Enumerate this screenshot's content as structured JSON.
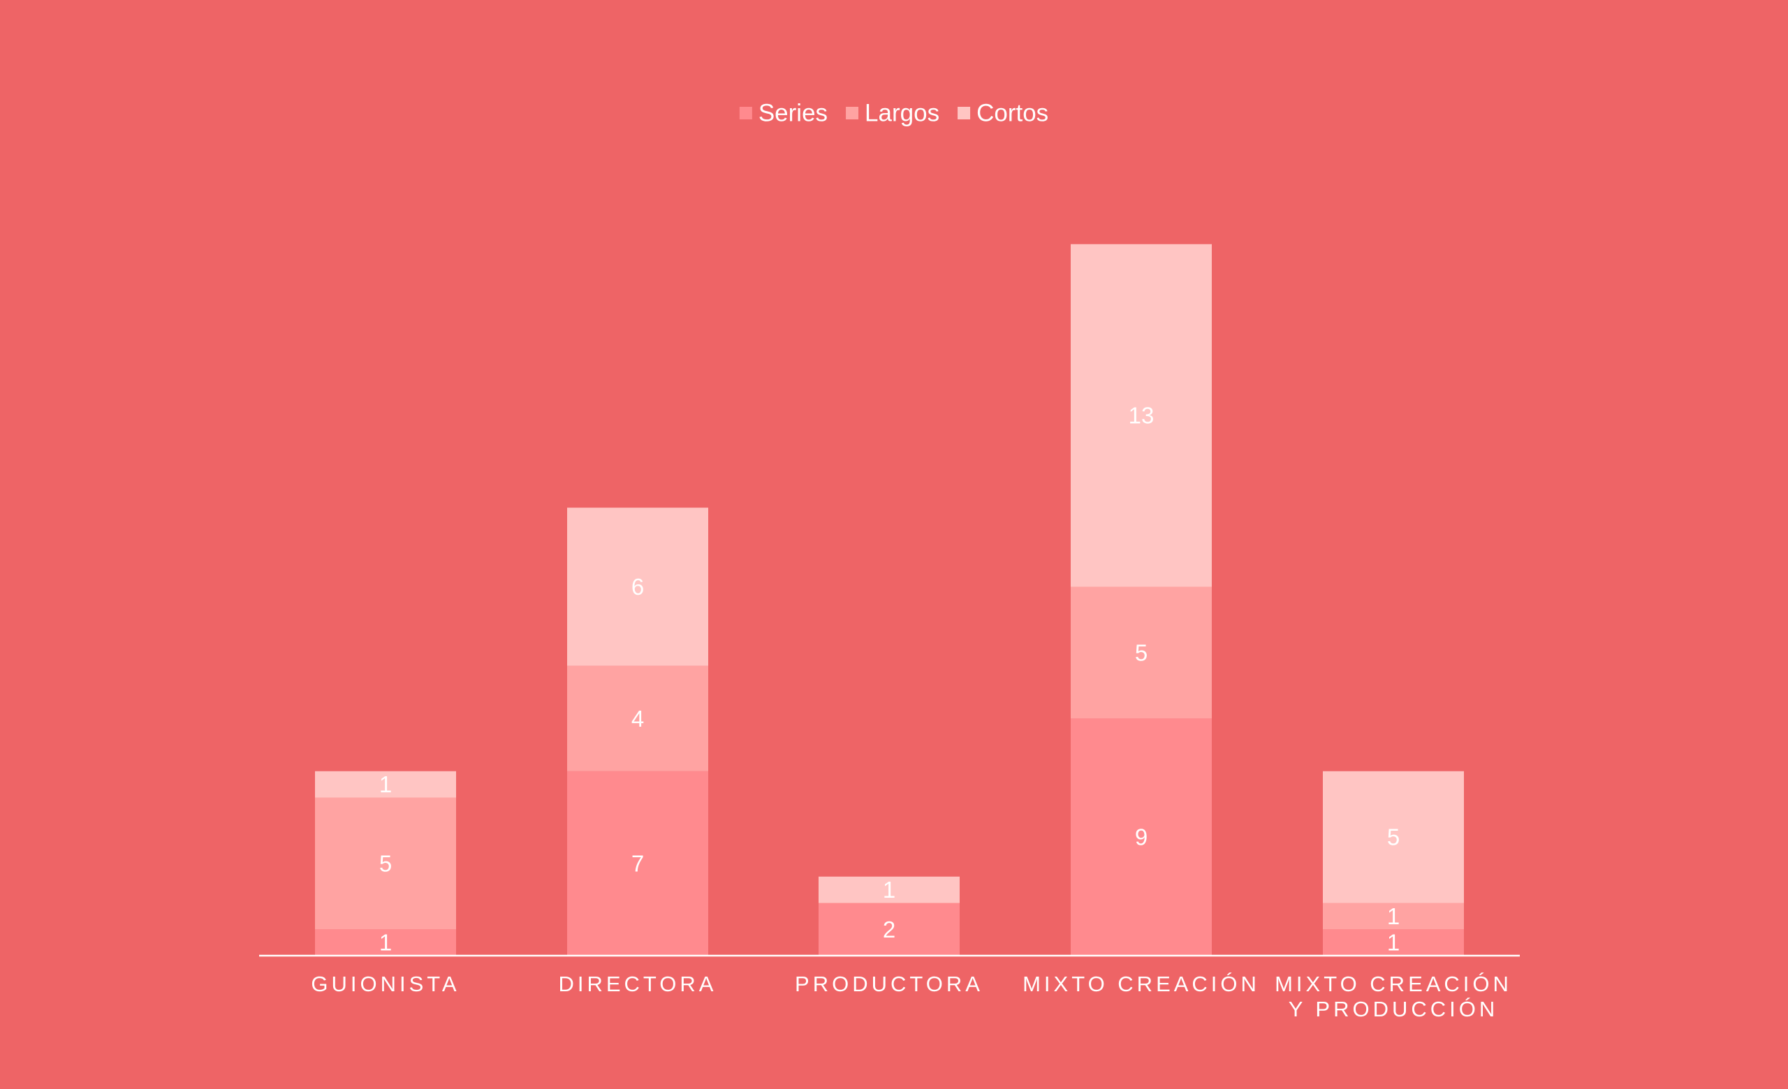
{
  "chart_data": {
    "type": "bar",
    "stacked": true,
    "title": "",
    "xlabel": "",
    "ylabel": "",
    "ylim": [
      0,
      27
    ],
    "grid": false,
    "legend_position": "top-center",
    "categories": [
      [
        "GUIONISTA"
      ],
      [
        "DIRECTORA"
      ],
      [
        "PRODUCTORA"
      ],
      [
        "MIXTO CREACIÓN"
      ],
      [
        "MIXTO CREACIÓN",
        "Y PRODUCCIÓN"
      ]
    ],
    "series": [
      {
        "name": "Series",
        "color": "#FF8A8E",
        "values": [
          1,
          7,
          2,
          9,
          1
        ]
      },
      {
        "name": "Largos",
        "color": "#FFA3A2",
        "values": [
          5,
          4,
          0,
          5,
          1
        ]
      },
      {
        "name": "Cortos",
        "color": "#FFC5C3",
        "values": [
          1,
          6,
          1,
          13,
          5
        ]
      }
    ],
    "background": "#EE6466",
    "axis_color": "#FFFFFF"
  }
}
